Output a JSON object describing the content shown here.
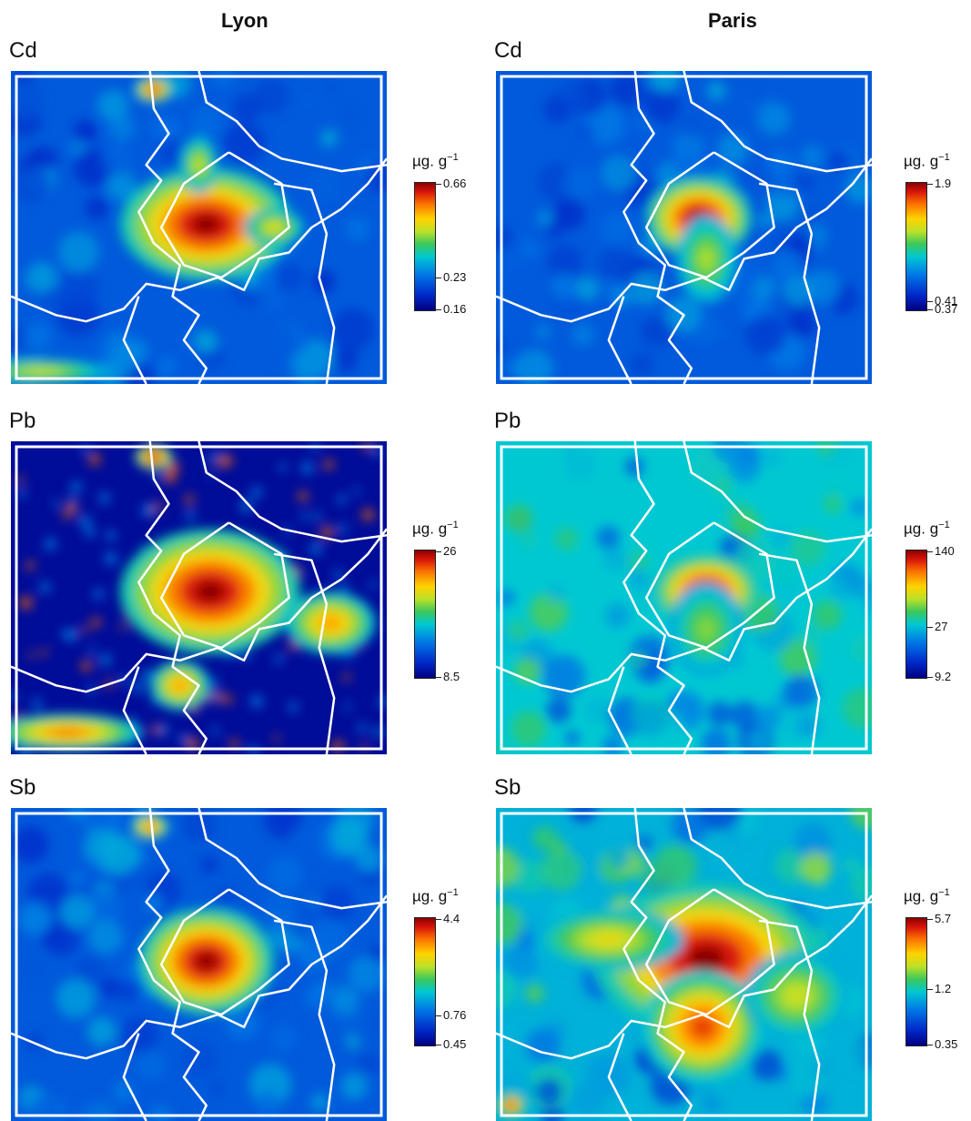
{
  "columns": [
    "Lyon",
    "Paris"
  ],
  "unit_text": "µg. g",
  "unit_exp": "−1",
  "panels": [
    {
      "id": "lyon-cd",
      "element": "Cd",
      "city": "Lyon",
      "row": 0,
      "col": 0,
      "range": [
        0.16,
        0.66
      ],
      "ticks": [
        0.66,
        0.23,
        0.16
      ],
      "intensity": "low",
      "hotspots": [
        [
          0.52,
          0.49,
          0.23,
          0.18,
          1.0
        ],
        [
          0.38,
          0.06,
          0.05,
          0.04,
          0.9
        ],
        [
          0.7,
          0.5,
          0.08,
          0.06,
          0.55
        ],
        [
          0.5,
          0.3,
          0.05,
          0.09,
          0.5
        ],
        [
          0.08,
          0.96,
          0.18,
          0.04,
          0.5
        ]
      ],
      "city_hot": [
        0.53,
        0.49
      ]
    },
    {
      "id": "paris-cd",
      "element": "Cd",
      "city": "Paris",
      "row": 0,
      "col": 1,
      "range": [
        0.37,
        1.9
      ],
      "ticks": [
        1.9,
        0.41,
        0.37
      ],
      "intensity": "low",
      "hotspots": [
        [
          0.54,
          0.47,
          0.14,
          0.13,
          1.0
        ],
        [
          0.56,
          0.6,
          0.08,
          0.14,
          0.45
        ]
      ],
      "city_hot": [
        0.54,
        0.47
      ]
    },
    {
      "id": "lyon-pb",
      "element": "Pb",
      "city": "Lyon",
      "row": 1,
      "col": 0,
      "range": [
        8.5,
        26
      ],
      "ticks": [
        26,
        8.5
      ],
      "intensity": "speckle",
      "hotspots": [
        [
          0.53,
          0.48,
          0.24,
          0.2,
          1.0
        ],
        [
          0.38,
          0.05,
          0.05,
          0.04,
          1.0
        ],
        [
          0.85,
          0.58,
          0.12,
          0.1,
          0.7
        ],
        [
          0.15,
          0.93,
          0.2,
          0.06,
          0.75
        ],
        [
          0.45,
          0.78,
          0.08,
          0.08,
          0.7
        ]
      ],
      "city_hot": [
        0.53,
        0.48
      ]
    },
    {
      "id": "paris-pb",
      "element": "Pb",
      "city": "Paris",
      "row": 1,
      "col": 1,
      "range": [
        9.2,
        140
      ],
      "ticks": [
        140,
        27,
        9.2
      ],
      "intensity": "mid",
      "hotspots": [
        [
          0.56,
          0.48,
          0.14,
          0.12,
          1.0
        ],
        [
          0.56,
          0.6,
          0.1,
          0.15,
          0.4
        ]
      ],
      "city_hot": [
        0.55,
        0.47
      ]
    },
    {
      "id": "lyon-sb",
      "element": "Sb",
      "city": "Lyon",
      "row": 2,
      "col": 0,
      "range": [
        0.45,
        4.4
      ],
      "ticks": [
        4.4,
        0.76,
        0.45
      ],
      "intensity": "low",
      "hotspots": [
        [
          0.52,
          0.49,
          0.18,
          0.17,
          1.0
        ],
        [
          0.37,
          0.06,
          0.05,
          0.04,
          0.8
        ]
      ],
      "city_hot": [
        0.54,
        0.48
      ]
    },
    {
      "id": "paris-sb",
      "element": "Sb",
      "city": "Paris",
      "row": 2,
      "col": 1,
      "range": [
        0.35,
        5.7
      ],
      "ticks": [
        5.7,
        1.2,
        0.35
      ],
      "intensity": "high",
      "hotspots": [
        [
          0.56,
          0.48,
          0.3,
          0.24,
          1.0
        ],
        [
          0.55,
          0.7,
          0.16,
          0.18,
          0.85
        ],
        [
          0.3,
          0.42,
          0.2,
          0.1,
          0.55
        ],
        [
          0.8,
          0.6,
          0.14,
          0.14,
          0.5
        ],
        [
          0.04,
          0.95,
          0.04,
          0.04,
          0.9
        ]
      ],
      "city_hot": [
        0.57,
        0.49
      ]
    }
  ],
  "chart_data": [
    {
      "type": "heatmap",
      "title": "Lyon",
      "panel": "Cd",
      "legend_label": "µg. g−1",
      "colorbar_ticks": [
        0.66,
        0.23,
        0.16
      ],
      "range": [
        0.16,
        0.66
      ]
    },
    {
      "type": "heatmap",
      "title": "Paris",
      "panel": "Cd",
      "legend_label": "µg. g−1",
      "colorbar_ticks": [
        1.9,
        0.41,
        0.37
      ],
      "range": [
        0.37,
        1.9
      ]
    },
    {
      "type": "heatmap",
      "title": "Lyon",
      "panel": "Pb",
      "legend_label": "µg. g−1",
      "colorbar_ticks": [
        26,
        8.5
      ],
      "range": [
        8.5,
        26
      ]
    },
    {
      "type": "heatmap",
      "title": "Paris",
      "panel": "Pb",
      "legend_label": "µg. g−1",
      "colorbar_ticks": [
        140,
        27,
        9.2
      ],
      "range": [
        9.2,
        140
      ]
    },
    {
      "type": "heatmap",
      "title": "Lyon",
      "panel": "Sb",
      "legend_label": "µg. g−1",
      "colorbar_ticks": [
        4.4,
        0.76,
        0.45
      ],
      "range": [
        0.45,
        4.4
      ]
    },
    {
      "type": "heatmap",
      "title": "Paris",
      "panel": "Sb",
      "legend_label": "µg. g−1",
      "colorbar_ticks": [
        5.7,
        1.2,
        0.35
      ],
      "range": [
        0.35,
        5.7
      ]
    }
  ]
}
